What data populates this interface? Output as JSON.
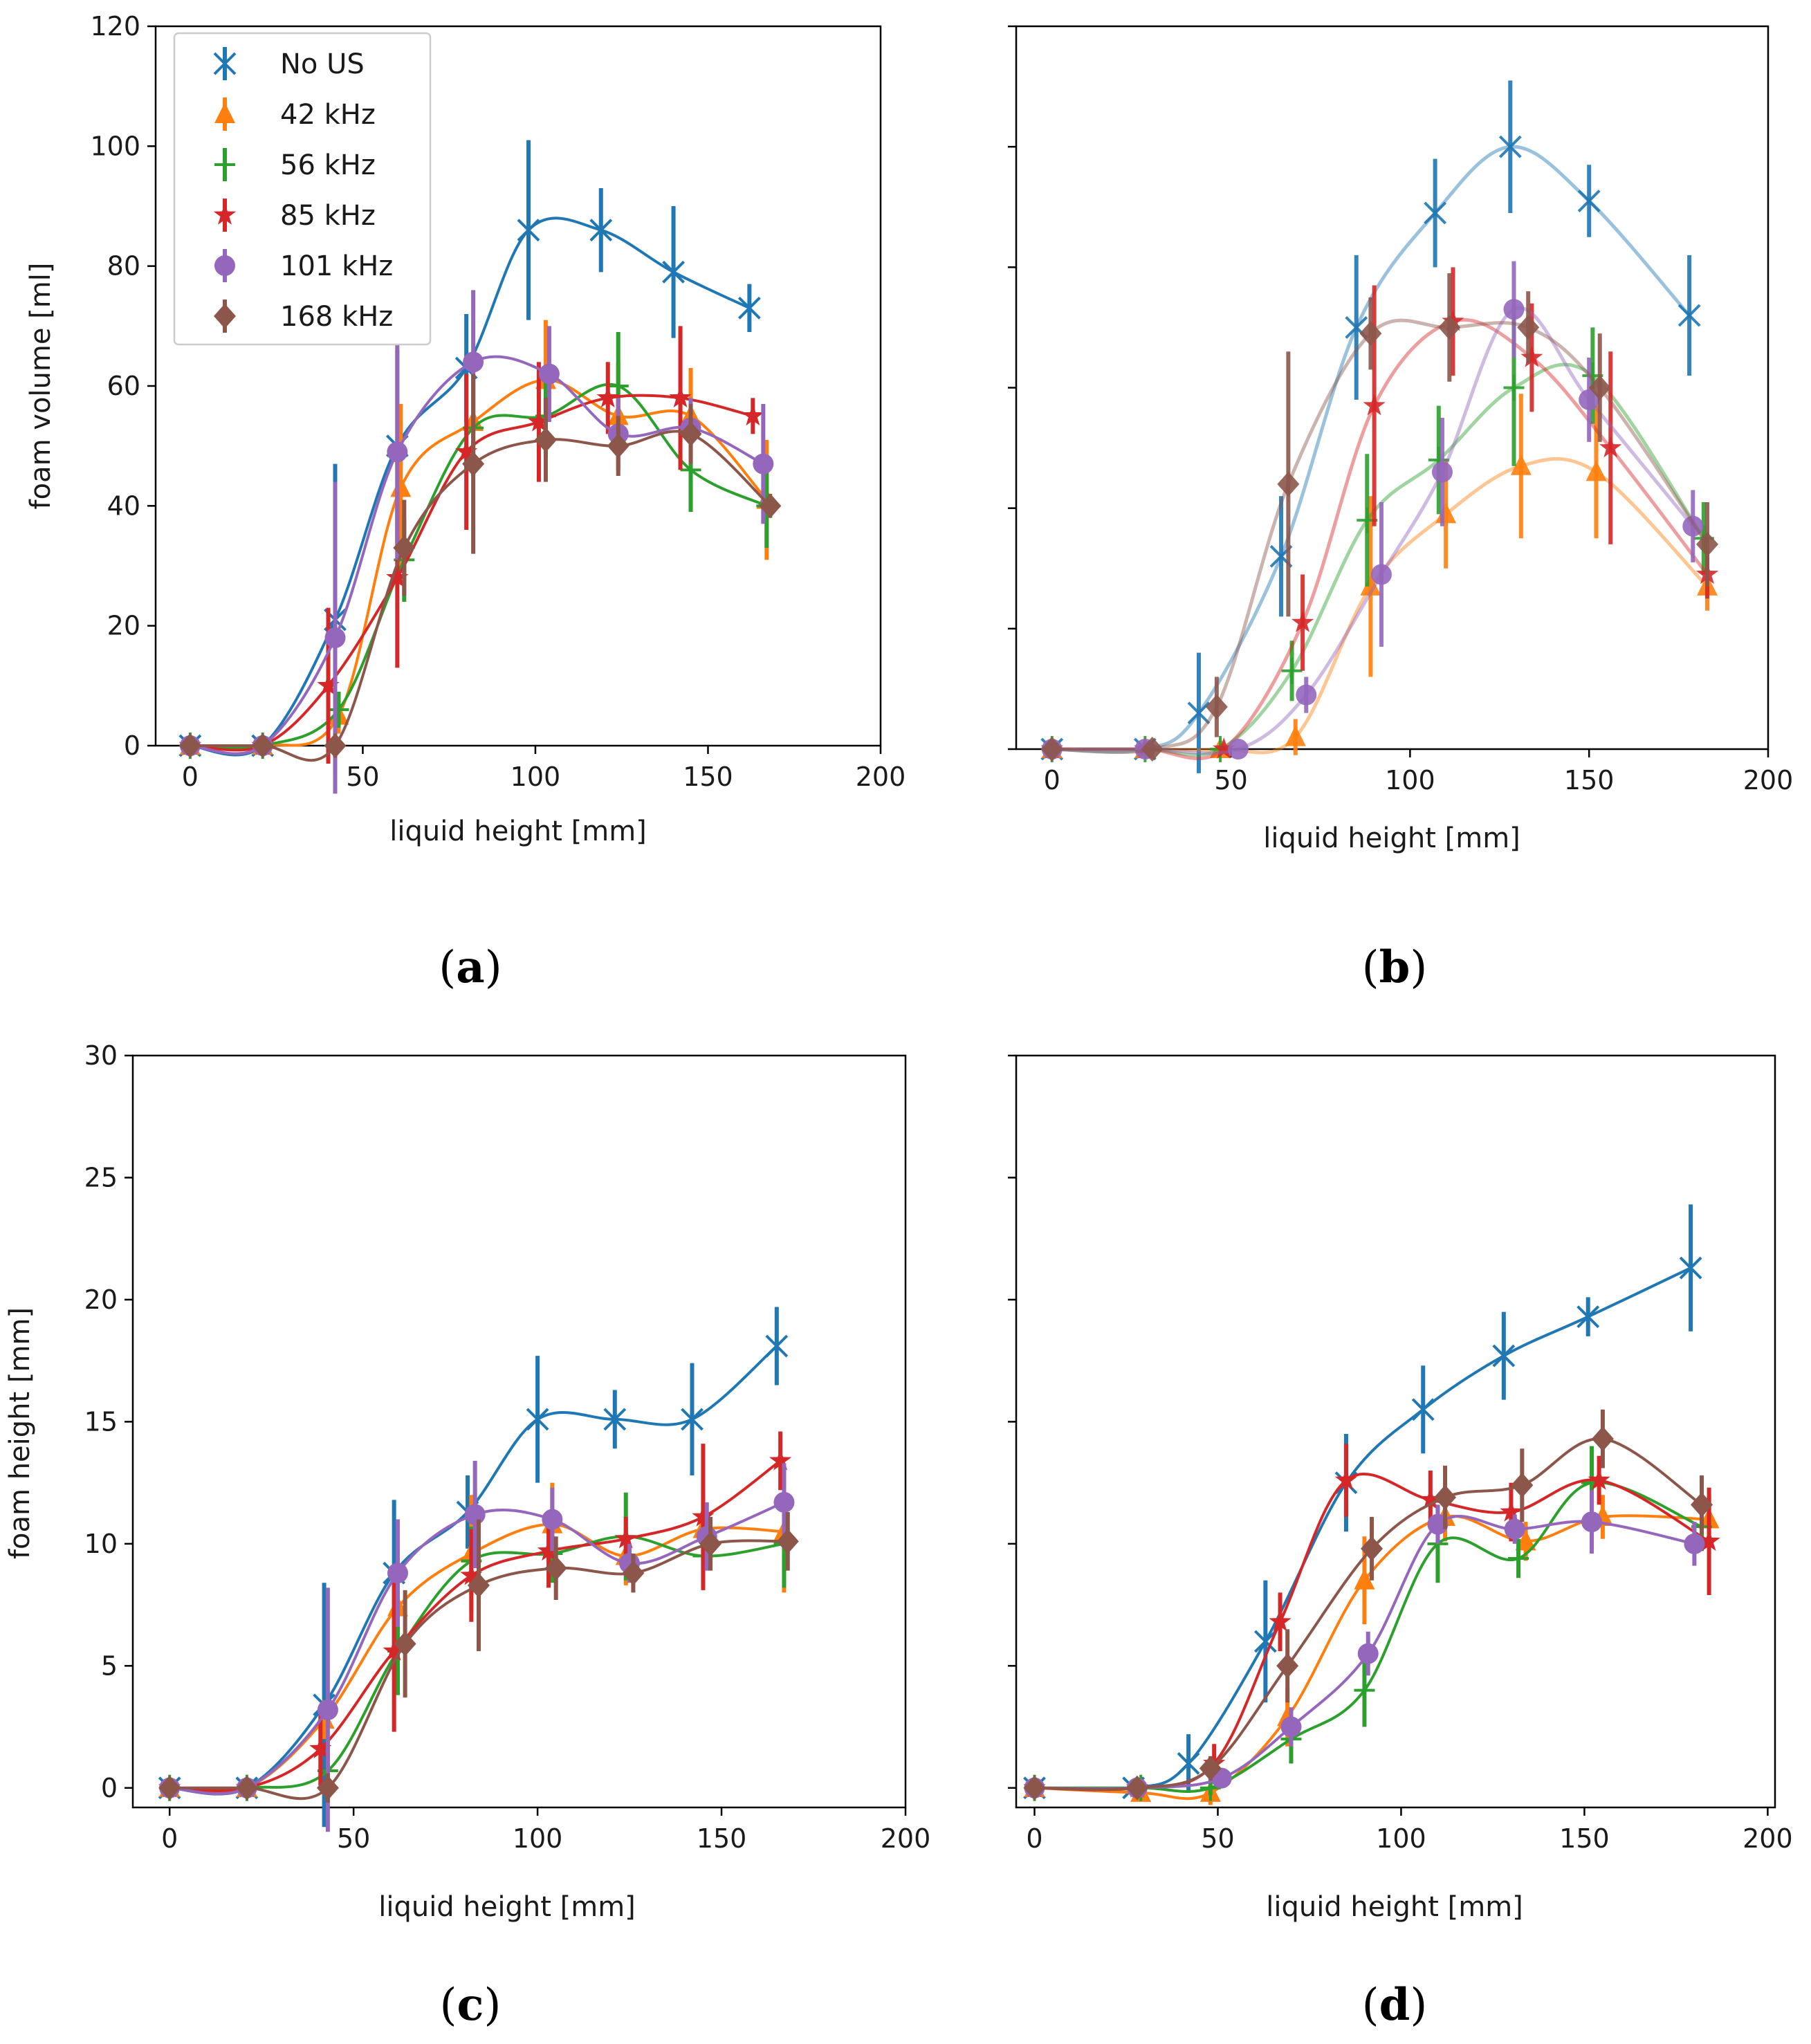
{
  "colors": {
    "No US": "#1f77b4",
    "42 kHz": "#ff7f0e",
    "56 kHz": "#2ca02c",
    "85 kHz": "#d62728",
    "101 kHz": "#9467bd",
    "168 kHz": "#8c564b"
  },
  "markers": {
    "No US": "x-icon",
    "42 kHz": "triangle-icon",
    "56 kHz": "plus-icon",
    "85 kHz": "star-icon",
    "101 kHz": "circle-icon",
    "168 kHz": "diamond-icon"
  },
  "legend": [
    "No US",
    "42 kHz",
    "56 kHz",
    "85 kHz",
    "101 kHz",
    "168 kHz"
  ],
  "chart_data": [
    {
      "id": "a",
      "panel_label": "a",
      "type": "line",
      "xlabel": "liquid height [mm]",
      "ylabel": "foam volume [ml]",
      "xlim": [
        -10,
        200
      ],
      "ylim": [
        0,
        120
      ],
      "xticks": [
        0,
        50,
        100,
        150,
        200
      ],
      "yticks": [
        0,
        20,
        40,
        60,
        80,
        100,
        120
      ],
      "xtick_labels": [
        "0",
        "50",
        "100",
        "150",
        "200"
      ],
      "ytick_labels": [
        "0",
        "20",
        "40",
        "60",
        "80",
        "100",
        "120"
      ],
      "show_ytick_labels": true,
      "legend": "upper-left",
      "faded": false,
      "series": [
        {
          "name": "No US",
          "x": [
            0,
            21,
            42,
            60,
            80,
            98,
            119,
            140,
            162
          ],
          "y": [
            0,
            0,
            21,
            50,
            63,
            86,
            86,
            79,
            73
          ],
          "err": [
            0,
            0,
            26,
            16,
            9,
            15,
            7,
            11,
            4
          ]
        },
        {
          "name": "42 kHz",
          "x": [
            0,
            21,
            43,
            61,
            82,
            103,
            124,
            145,
            167
          ],
          "y": [
            0,
            0,
            5,
            43,
            54,
            61,
            55,
            55,
            41
          ],
          "err": [
            0,
            0,
            3,
            14,
            8,
            10,
            9,
            8,
            10
          ]
        },
        {
          "name": "56 kHz",
          "x": [
            0,
            21,
            43,
            62,
            82,
            103,
            124,
            145,
            167
          ],
          "y": [
            0,
            0,
            6,
            31,
            53,
            55,
            60,
            46,
            40
          ],
          "err": [
            0,
            0,
            3,
            7,
            8,
            7,
            9,
            7,
            7
          ]
        },
        {
          "name": "85 kHz",
          "x": [
            0,
            21,
            40,
            60,
            80,
            101,
            121,
            142,
            163
          ],
          "y": [
            0,
            0,
            10,
            28,
            49,
            54,
            58,
            58,
            55
          ],
          "err": [
            0,
            0,
            13,
            15,
            13,
            10,
            6,
            12,
            3
          ]
        },
        {
          "name": "101 kHz",
          "x": [
            0,
            21,
            42,
            60,
            82,
            104,
            124,
            145,
            166
          ],
          "y": [
            0,
            0,
            18,
            49,
            64,
            62,
            52,
            53,
            47
          ],
          "err": [
            0,
            0,
            26,
            18,
            12,
            8,
            6,
            5,
            10
          ]
        },
        {
          "name": "168 kHz",
          "x": [
            0,
            21,
            42,
            62,
            82,
            103,
            124,
            145,
            168
          ],
          "y": [
            0,
            0,
            0,
            33,
            47,
            51,
            50,
            52,
            40
          ],
          "err": [
            0,
            0,
            2,
            8,
            15,
            7,
            5,
            5,
            2
          ]
        }
      ]
    },
    {
      "id": "b",
      "panel_label": "b",
      "type": "line",
      "xlabel": "liquid height [mm]",
      "ylabel": "",
      "xlim": [
        -10,
        200
      ],
      "ylim": [
        0,
        120
      ],
      "xticks": [
        0,
        50,
        100,
        150,
        200
      ],
      "yticks": [
        0,
        20,
        40,
        60,
        80,
        100,
        120
      ],
      "xtick_labels": [
        "0",
        "50",
        "100",
        "150",
        "200"
      ],
      "ytick_labels": [
        "0",
        "20",
        "40",
        "60",
        "80",
        "100",
        "120"
      ],
      "show_ytick_labels": false,
      "legend": "none",
      "faded": true,
      "series": [
        {
          "name": "No US",
          "x": [
            0,
            26,
            41,
            64,
            85,
            107,
            128,
            150,
            178
          ],
          "y": [
            0,
            0,
            6,
            32,
            70,
            89,
            100,
            91,
            72
          ],
          "err": [
            0,
            0,
            10,
            10,
            12,
            9,
            11,
            6,
            10
          ]
        },
        {
          "name": "42 kHz",
          "x": [
            0,
            26,
            47,
            68,
            89,
            110,
            131,
            152,
            183
          ],
          "y": [
            0,
            0,
            0,
            2,
            27,
            39,
            47,
            46,
            27
          ],
          "err": [
            0,
            0,
            0,
            3,
            15,
            9,
            12,
            11,
            4
          ]
        },
        {
          "name": "56 kHz",
          "x": [
            0,
            26,
            47,
            67,
            88,
            108,
            129,
            151,
            182
          ],
          "y": [
            0,
            0,
            0,
            13,
            38,
            48,
            60,
            62,
            35
          ],
          "err": [
            0,
            0,
            0,
            5,
            11,
            9,
            13,
            8,
            6
          ]
        },
        {
          "name": "85 kHz",
          "x": [
            0,
            26,
            48,
            70,
            90,
            112,
            134,
            156,
            183
          ],
          "y": [
            0,
            0,
            0,
            21,
            57,
            71,
            65,
            50,
            29
          ],
          "err": [
            0,
            0,
            0,
            8,
            20,
            9,
            9,
            16,
            4
          ]
        },
        {
          "name": "101 kHz",
          "x": [
            0,
            26,
            52,
            71,
            92,
            109,
            129,
            150,
            179
          ],
          "y": [
            0,
            0,
            0,
            9,
            29,
            46,
            73,
            58,
            37
          ],
          "err": [
            0,
            0,
            0,
            3,
            12,
            9,
            8,
            7,
            6
          ]
        },
        {
          "name": "168 kHz",
          "x": [
            0,
            28,
            46,
            66,
            89,
            111,
            133,
            153,
            183
          ],
          "y": [
            0,
            0,
            7,
            44,
            69,
            70,
            70,
            60,
            34
          ],
          "err": [
            0,
            0,
            5,
            22,
            6,
            9,
            6,
            9,
            7
          ]
        }
      ]
    },
    {
      "id": "c",
      "panel_label": "c",
      "type": "line",
      "xlabel": "liquid height [mm]",
      "ylabel": "foam height [mm]",
      "xlim": [
        -10,
        200
      ],
      "ylim": [
        -0.8,
        30
      ],
      "xticks": [
        0,
        50,
        100,
        150,
        200
      ],
      "yticks": [
        0,
        5,
        10,
        15,
        20,
        25,
        30
      ],
      "xtick_labels": [
        "0",
        "50",
        "100",
        "150",
        "200"
      ],
      "ytick_labels": [
        "0",
        "5",
        "10",
        "15",
        "20",
        "25",
        "30"
      ],
      "show_ytick_labels": true,
      "legend": "none",
      "faded": false,
      "series": [
        {
          "name": "No US",
          "x": [
            0,
            21,
            42,
            61,
            81,
            100,
            121,
            142,
            165
          ],
          "y": [
            0,
            0,
            3.4,
            8.8,
            11.3,
            15.1,
            15.1,
            15.1,
            18.1
          ],
          "err": [
            0,
            0,
            5,
            3,
            1.5,
            2.6,
            1.2,
            2.3,
            1.6
          ]
        },
        {
          "name": "42 kHz",
          "x": [
            0,
            21,
            42,
            62,
            82,
            104,
            124,
            145,
            167
          ],
          "y": [
            0,
            0,
            2.8,
            7.4,
            9.6,
            10.8,
            9.5,
            10.6,
            10.5
          ],
          "err": [
            0,
            0,
            0.8,
            2.4,
            2.4,
            1.7,
            1.2,
            1.5,
            2.5
          ]
        },
        {
          "name": "56 kHz",
          "x": [
            0,
            21,
            43,
            62,
            82,
            104,
            124,
            145,
            167
          ],
          "y": [
            0,
            0,
            0.7,
            5.6,
            9.3,
            9.6,
            10.3,
            9.5,
            10
          ],
          "err": [
            0,
            0,
            1.2,
            1.8,
            1.4,
            1.2,
            1.8,
            1.1,
            1.8
          ]
        },
        {
          "name": "85 kHz",
          "x": [
            0,
            21,
            41,
            61,
            82,
            103,
            124,
            145,
            166
          ],
          "y": [
            0,
            0,
            1.6,
            5.6,
            8.7,
            9.7,
            10.2,
            11.1,
            13.4
          ],
          "err": [
            0,
            0,
            1.5,
            3.3,
            1.9,
            1.5,
            0.9,
            3,
            1.2
          ]
        },
        {
          "name": "101 kHz",
          "x": [
            0,
            21,
            43,
            62,
            83,
            104,
            125,
            146,
            167
          ],
          "y": [
            0,
            0,
            3.2,
            8.8,
            11.2,
            11,
            9.2,
            10.3,
            11.7
          ],
          "err": [
            0,
            0,
            5,
            2.2,
            2.2,
            1.3,
            0.8,
            1.4,
            1.6
          ]
        },
        {
          "name": "168 kHz",
          "x": [
            0,
            21,
            43,
            64,
            84,
            105,
            126,
            147,
            168
          ],
          "y": [
            0,
            0,
            0,
            5.9,
            8.3,
            9,
            8.8,
            10,
            10.1
          ],
          "err": [
            0,
            0,
            0.6,
            2.2,
            2.7,
            1.3,
            0.8,
            1.1,
            1.2
          ]
        }
      ]
    },
    {
      "id": "d",
      "panel_label": "d",
      "type": "line",
      "xlabel": "liquid height [mm]",
      "ylabel": "",
      "xlim": [
        -5,
        202
      ],
      "ylim": [
        -0.8,
        30
      ],
      "xticks": [
        0,
        50,
        100,
        150,
        200
      ],
      "yticks": [
        0,
        5,
        10,
        15,
        20,
        25,
        30
      ],
      "xtick_labels": [
        "0",
        "50",
        "100",
        "150",
        "200"
      ],
      "ytick_labels": [
        "0",
        "5",
        "10",
        "15",
        "20",
        "25",
        "30"
      ],
      "show_ytick_labels": false,
      "legend": "none",
      "faded": false,
      "series": [
        {
          "name": "No US",
          "x": [
            0,
            27,
            42,
            63,
            85,
            106,
            128,
            151,
            179
          ],
          "y": [
            0,
            0,
            1,
            6,
            12.5,
            15.5,
            17.7,
            19.3,
            21.3
          ],
          "err": [
            0,
            0,
            1.2,
            2.5,
            2,
            1.8,
            1.8,
            0.8,
            2.6
          ]
        },
        {
          "name": "42 kHz",
          "x": [
            0,
            29,
            48,
            69,
            90,
            112,
            134,
            155,
            184
          ],
          "y": [
            0,
            -0.2,
            -0.2,
            2.9,
            8.5,
            11.1,
            10.1,
            11.1,
            11
          ],
          "err": [
            0,
            0,
            0.5,
            1.2,
            1.8,
            1,
            0.8,
            0.9,
            1
          ]
        },
        {
          "name": "56 kHz",
          "x": [
            0,
            29,
            48,
            70,
            90,
            110,
            132,
            152,
            182
          ],
          "y": [
            0,
            0,
            0,
            2,
            4,
            10,
            9.4,
            12.5,
            10.7
          ],
          "err": [
            0,
            0,
            0.3,
            1,
            1.5,
            1.6,
            0.8,
            1.5,
            1
          ]
        },
        {
          "name": "85 kHz",
          "x": [
            0,
            28,
            49,
            67,
            85,
            108,
            130,
            154,
            184
          ],
          "y": [
            0,
            0,
            1,
            6.8,
            12.6,
            11.8,
            11.3,
            12.6,
            10.1
          ],
          "err": [
            0,
            0,
            0.8,
            1.2,
            1.5,
            1.2,
            1.2,
            1,
            2.2
          ]
        },
        {
          "name": "101 kHz",
          "x": [
            0,
            28,
            51,
            70,
            91,
            110,
            131,
            152,
            180
          ],
          "y": [
            0,
            0,
            0.4,
            2.5,
            5.5,
            10.8,
            10.6,
            10.9,
            10
          ],
          "err": [
            0,
            0,
            0.2,
            0.8,
            0.9,
            0.8,
            0.6,
            1.3,
            0.9
          ]
        },
        {
          "name": "168 kHz",
          "x": [
            0,
            28,
            48,
            69,
            92,
            112,
            133,
            155,
            182
          ],
          "y": [
            0,
            0,
            0.8,
            5,
            9.8,
            11.9,
            12.4,
            14.3,
            11.6
          ],
          "err": [
            0,
            0,
            0.5,
            1.5,
            1.3,
            1.3,
            1.5,
            1.2,
            1.2
          ]
        }
      ]
    }
  ]
}
